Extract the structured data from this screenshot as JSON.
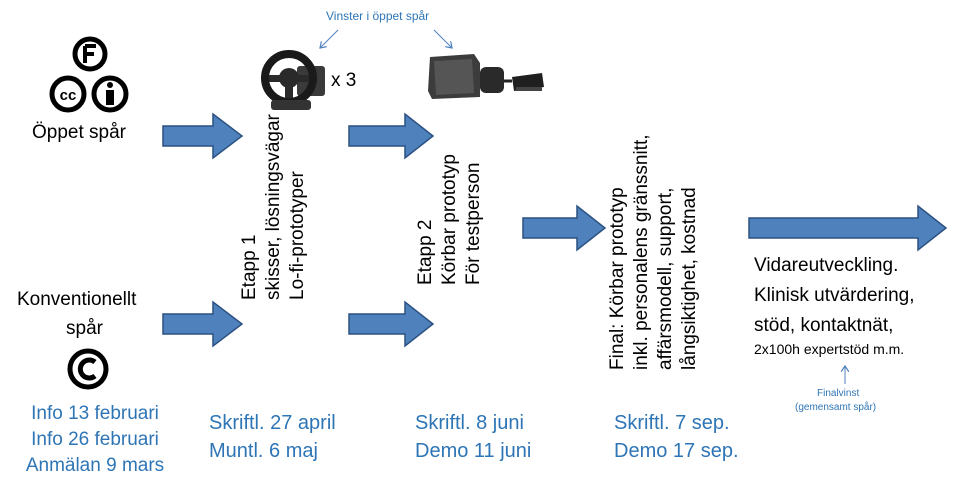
{
  "tracks": {
    "open_label": "Öppet spår",
    "conventional_label_1": "Konventionellt",
    "conventional_label_2": "spår",
    "open_icons": [
      "creative-commons-icon",
      "by-attribution-icon",
      "f-icon"
    ],
    "conventional_icon": "copyright-icon"
  },
  "prizes": {
    "open_track_label": "Vinster i öppet spår",
    "wheel_multiplier": "x 3",
    "final_label": "Finalvinst",
    "final_sub": "(gemensamt spår)"
  },
  "stages": [
    {
      "lines": [
        "Etapp 1",
        "skisser, lösningsvägar",
        "Lo-fi-prototyper"
      ]
    },
    {
      "lines": [
        "Etapp 2",
        "Körbar prototyp",
        "För testperson"
      ]
    },
    {
      "lines": [
        "Final: Körbar prototyp",
        "inkl. personalens gränssnitt,",
        "affärsmodell, support,",
        "långsiktighet, kostnad"
      ]
    }
  ],
  "followup": {
    "lines": [
      "Vidareutveckling.",
      "Klinisk utvärdering,",
      "stöd, kontaktnät,"
    ],
    "small": "2x100h expertstöd m.m."
  },
  "dates": {
    "info": [
      "Info 13 februari",
      "Info 26 februari",
      "Anmälan 9 mars"
    ],
    "stage1": [
      "Skriftl. 27 april",
      "Muntl. 6 maj"
    ],
    "stage2": [
      "Skriftl. 8 juni",
      "Demo 11 juni"
    ],
    "final": [
      "Skriftl. 7 sep.",
      "Demo 17 sep."
    ]
  },
  "colors": {
    "arrow_fill": "#4f81bd",
    "arrow_stroke": "#2c5282",
    "date_text": "#2e75b6"
  }
}
